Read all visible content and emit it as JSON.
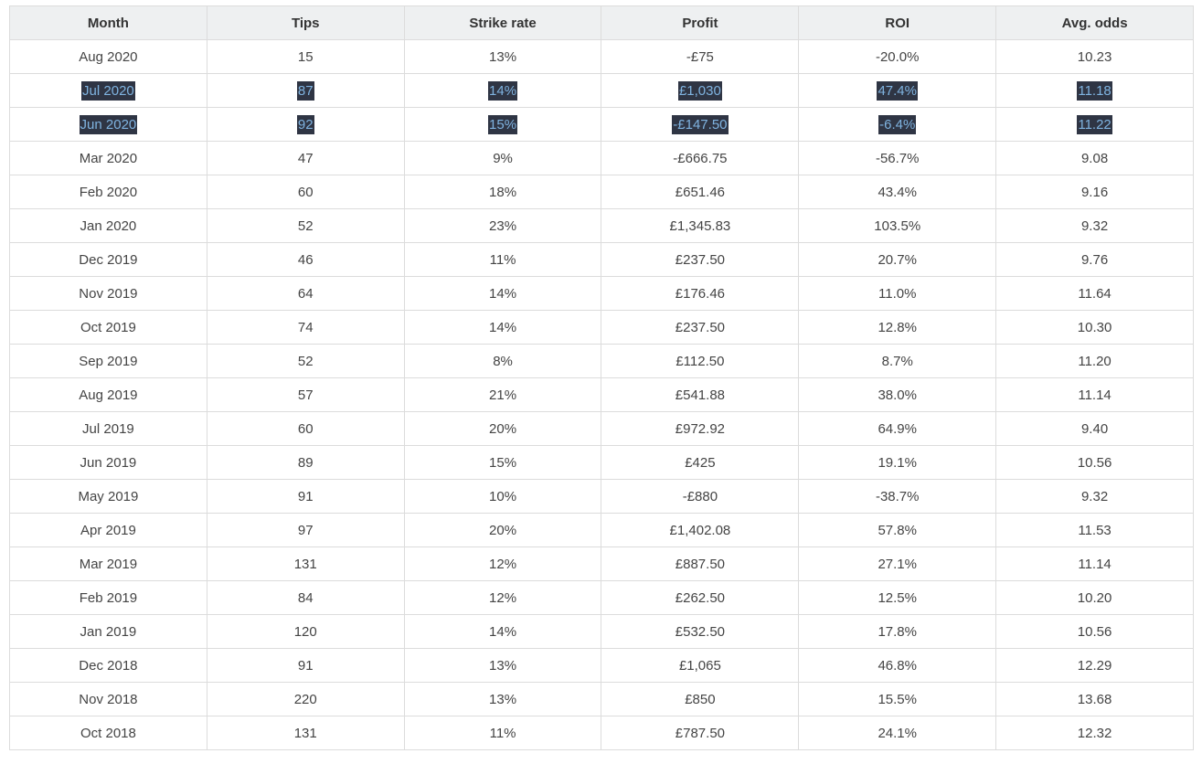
{
  "table": {
    "columns": [
      "Month",
      "Tips",
      "Strike rate",
      "Profit",
      "ROI",
      "Avg. odds"
    ],
    "rows": [
      {
        "month": "Aug 2020",
        "tips": "15",
        "strike_rate": "13%",
        "profit": "-£75",
        "roi": "-20.0%",
        "avg_odds": "10.23",
        "selected": false
      },
      {
        "month": "Jul 2020",
        "tips": "87",
        "strike_rate": "14%",
        "profit": "£1,030",
        "roi": "47.4%",
        "avg_odds": "11.18",
        "selected": true
      },
      {
        "month": "Jun 2020",
        "tips": "92",
        "strike_rate": "15%",
        "profit": "-£147.50",
        "roi": "-6.4%",
        "avg_odds": "11.22",
        "selected": true
      },
      {
        "month": "Mar 2020",
        "tips": "47",
        "strike_rate": "9%",
        "profit": "-£666.75",
        "roi": "-56.7%",
        "avg_odds": "9.08",
        "selected": false
      },
      {
        "month": "Feb 2020",
        "tips": "60",
        "strike_rate": "18%",
        "profit": "£651.46",
        "roi": "43.4%",
        "avg_odds": "9.16",
        "selected": false
      },
      {
        "month": "Jan 2020",
        "tips": "52",
        "strike_rate": "23%",
        "profit": "£1,345.83",
        "roi": "103.5%",
        "avg_odds": "9.32",
        "selected": false
      },
      {
        "month": "Dec 2019",
        "tips": "46",
        "strike_rate": "11%",
        "profit": "£237.50",
        "roi": "20.7%",
        "avg_odds": "9.76",
        "selected": false
      },
      {
        "month": "Nov 2019",
        "tips": "64",
        "strike_rate": "14%",
        "profit": "£176.46",
        "roi": "11.0%",
        "avg_odds": "11.64",
        "selected": false
      },
      {
        "month": "Oct 2019",
        "tips": "74",
        "strike_rate": "14%",
        "profit": "£237.50",
        "roi": "12.8%",
        "avg_odds": "10.30",
        "selected": false
      },
      {
        "month": "Sep 2019",
        "tips": "52",
        "strike_rate": "8%",
        "profit": "£112.50",
        "roi": "8.7%",
        "avg_odds": "11.20",
        "selected": false
      },
      {
        "month": "Aug 2019",
        "tips": "57",
        "strike_rate": "21%",
        "profit": "£541.88",
        "roi": "38.0%",
        "avg_odds": "11.14",
        "selected": false
      },
      {
        "month": "Jul 2019",
        "tips": "60",
        "strike_rate": "20%",
        "profit": "£972.92",
        "roi": "64.9%",
        "avg_odds": "9.40",
        "selected": false
      },
      {
        "month": "Jun 2019",
        "tips": "89",
        "strike_rate": "15%",
        "profit": "£425",
        "roi": "19.1%",
        "avg_odds": "10.56",
        "selected": false
      },
      {
        "month": "May 2019",
        "tips": "91",
        "strike_rate": "10%",
        "profit": "-£880",
        "roi": "-38.7%",
        "avg_odds": "9.32",
        "selected": false
      },
      {
        "month": "Apr 2019",
        "tips": "97",
        "strike_rate": "20%",
        "profit": "£1,402.08",
        "roi": "57.8%",
        "avg_odds": "11.53",
        "selected": false
      },
      {
        "month": "Mar 2019",
        "tips": "131",
        "strike_rate": "12%",
        "profit": "£887.50",
        "roi": "27.1%",
        "avg_odds": "11.14",
        "selected": false
      },
      {
        "month": "Feb 2019",
        "tips": "84",
        "strike_rate": "12%",
        "profit": "£262.50",
        "roi": "12.5%",
        "avg_odds": "10.20",
        "selected": false
      },
      {
        "month": "Jan 2019",
        "tips": "120",
        "strike_rate": "14%",
        "profit": "£532.50",
        "roi": "17.8%",
        "avg_odds": "10.56",
        "selected": false
      },
      {
        "month": "Dec 2018",
        "tips": "91",
        "strike_rate": "13%",
        "profit": "£1,065",
        "roi": "46.8%",
        "avg_odds": "12.29",
        "selected": false
      },
      {
        "month": "Nov 2018",
        "tips": "220",
        "strike_rate": "13%",
        "profit": "£850",
        "roi": "15.5%",
        "avg_odds": "13.68",
        "selected": false
      },
      {
        "month": "Oct 2018",
        "tips": "131",
        "strike_rate": "11%",
        "profit": "£787.50",
        "roi": "24.1%",
        "avg_odds": "12.32",
        "selected": false
      }
    ]
  },
  "colors": {
    "header_bg": "#eef0f1",
    "border": "#dcdcdc",
    "selection_bg": "#2f3544",
    "selection_text": "#7fb3e0"
  }
}
